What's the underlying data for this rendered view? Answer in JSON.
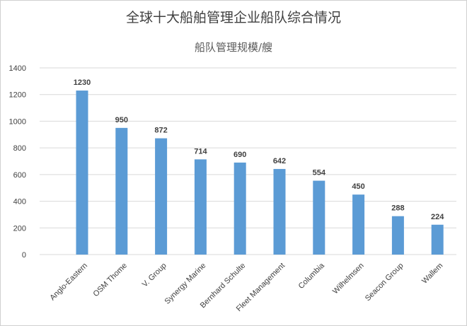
{
  "chart_data": {
    "type": "bar",
    "title": "全球十大船舶管理企业船队综合情况",
    "subtitle": "船队管理规模/艘",
    "categories": [
      "Anglo-Eastern",
      "OSM Thome",
      "V. Group",
      "Synergy Marine",
      "Bernhard Schulte",
      "Fleet Management",
      "Columbia",
      "Wilhelmsen",
      "Seacon Group",
      "Wallem"
    ],
    "values": [
      1230,
      950,
      872,
      714,
      690,
      642,
      554,
      450,
      288,
      224
    ],
    "ylim": [
      0,
      1400
    ],
    "yticks": [
      0,
      200,
      400,
      600,
      800,
      1000,
      1200,
      1400
    ],
    "grid": true,
    "bar_color": "#5b9bd5",
    "grid_color": "#d9d9d9"
  }
}
